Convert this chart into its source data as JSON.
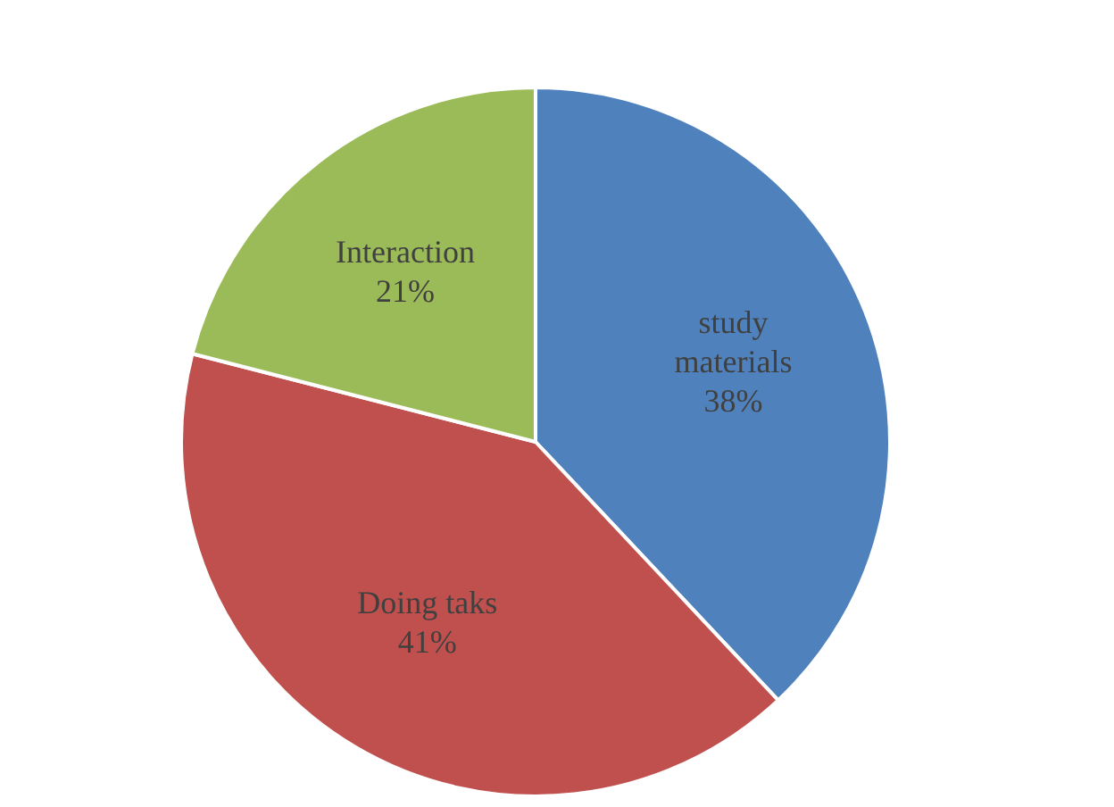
{
  "chart_data": {
    "type": "pie",
    "categories": [
      "study materials",
      "Doing taks",
      "Interaction"
    ],
    "values": [
      38,
      41,
      21
    ],
    "colors": [
      "#4f81bd",
      "#c0504d",
      "#9bbb59"
    ],
    "value_labels": [
      "38%",
      "41%",
      "21%"
    ],
    "legend": false
  }
}
